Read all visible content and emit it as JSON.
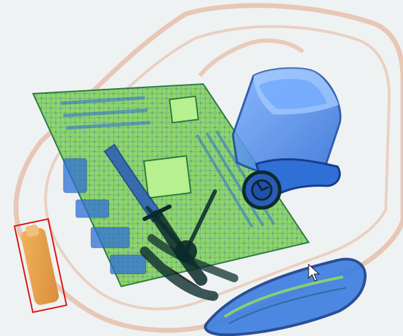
{
  "scan": {
    "colors": {
      "background": "#eef2f2",
      "organic_orange": "#e8a24a",
      "bag_outline": "#e7b9a2",
      "inorganic_green": "#8fd66a",
      "metal_blue": "#2f6fd6",
      "dense_dark": "#0b2a2a",
      "alert_red": "#e01010"
    },
    "objects": [
      {
        "name": "bag-outline",
        "kind": "organic"
      },
      {
        "name": "motherboard",
        "kind": "inorganic"
      },
      {
        "name": "plastic-cup",
        "kind": "metal"
      },
      {
        "name": "wristwatch",
        "kind": "metal"
      },
      {
        "name": "knife",
        "kind": "metal"
      },
      {
        "name": "pliers",
        "kind": "metal"
      },
      {
        "name": "case-lid",
        "kind": "metal"
      },
      {
        "name": "threat-box-bottle",
        "kind": "alert"
      }
    ],
    "cursor": {
      "name": "mouse-pointer-icon"
    }
  }
}
